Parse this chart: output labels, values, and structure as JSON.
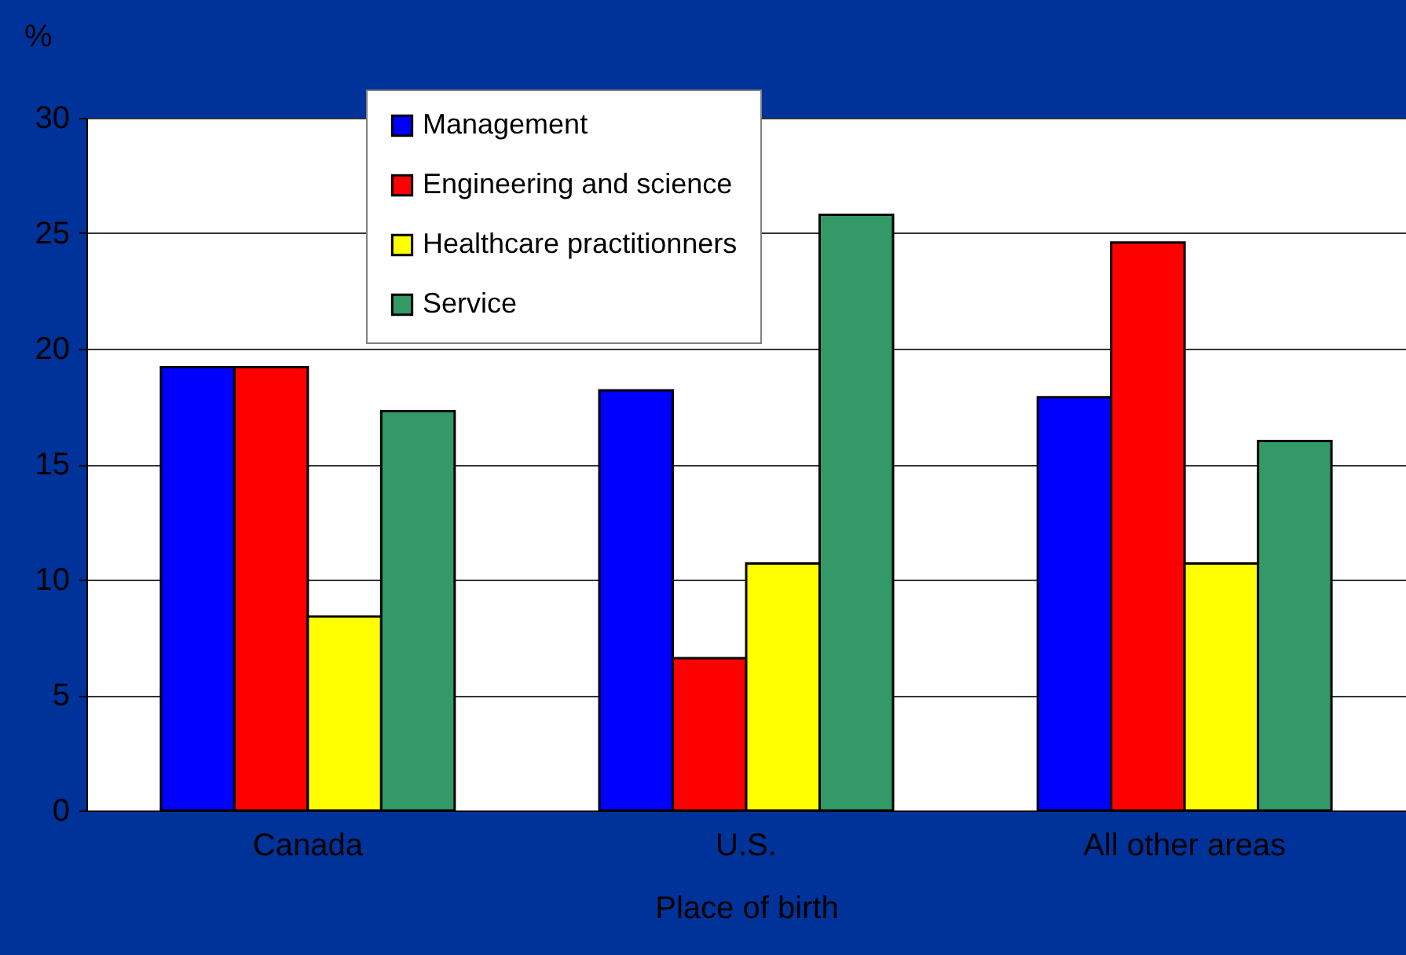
{
  "chart_data": {
    "type": "bar",
    "xlabel": "Place of birth",
    "ylabel": "%",
    "categories": [
      "Canada",
      "U.S.",
      "All other areas"
    ],
    "series": [
      {
        "name": "Management",
        "color": "#0000ff",
        "values": [
          19.2,
          18.2,
          17.9
        ]
      },
      {
        "name": "Engineering and science",
        "color": "#ff0000",
        "values": [
          19.2,
          6.6,
          24.6
        ]
      },
      {
        "name": "Healthcare practitionners",
        "color": "#ffff00",
        "values": [
          8.4,
          10.7,
          10.7
        ]
      },
      {
        "name": "Service",
        "color": "#339966",
        "values": [
          17.3,
          25.8,
          16.0
        ]
      }
    ],
    "ylim": [
      0,
      30
    ],
    "yticks": [
      0,
      5,
      10,
      15,
      20,
      25,
      30
    ],
    "grid": "y",
    "legend": "top"
  }
}
